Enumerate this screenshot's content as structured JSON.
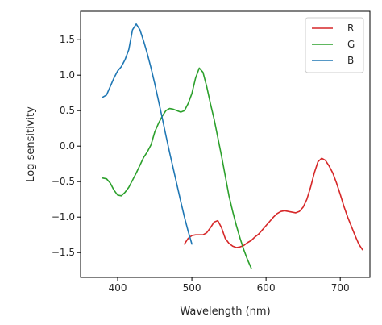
{
  "chart_data": {
    "type": "line",
    "xlabel": "Wavelength (nm)",
    "ylabel": "Log sensitivity",
    "xlim": [
      350,
      740
    ],
    "ylim": [
      -1.85,
      1.9
    ],
    "xticks": [
      400,
      500,
      600,
      700
    ],
    "yticks": [
      -1.5,
      -1.0,
      -0.5,
      0.0,
      0.5,
      1.0,
      1.5
    ],
    "ytick_labels": [
      "−1.5",
      "−1.0",
      "−0.5",
      "0.0",
      "0.5",
      "1.0",
      "1.5"
    ],
    "grid": false,
    "legend_position": "top-right",
    "series": [
      {
        "name": "R",
        "color": "#d62728",
        "x": [
          490,
          495,
          500,
          505,
          510,
          515,
          520,
          525,
          530,
          535,
          540,
          545,
          550,
          555,
          560,
          565,
          570,
          575,
          580,
          585,
          590,
          595,
          600,
          605,
          610,
          615,
          620,
          625,
          630,
          635,
          640,
          645,
          650,
          655,
          660,
          665,
          670,
          675,
          680,
          685,
          690,
          695,
          700,
          705,
          710,
          715,
          720,
          725,
          730
        ],
        "y": [
          -1.38,
          -1.3,
          -1.26,
          -1.25,
          -1.25,
          -1.25,
          -1.22,
          -1.15,
          -1.07,
          -1.05,
          -1.15,
          -1.3,
          -1.37,
          -1.41,
          -1.43,
          -1.42,
          -1.4,
          -1.36,
          -1.33,
          -1.28,
          -1.24,
          -1.18,
          -1.12,
          -1.06,
          -1.0,
          -0.95,
          -0.92,
          -0.91,
          -0.92,
          -0.93,
          -0.94,
          -0.92,
          -0.86,
          -0.75,
          -0.58,
          -0.38,
          -0.22,
          -0.17,
          -0.2,
          -0.28,
          -0.38,
          -0.52,
          -0.68,
          -0.85,
          -1.0,
          -1.13,
          -1.26,
          -1.38,
          -1.46
        ]
      },
      {
        "name": "G",
        "color": "#2ca02c",
        "x": [
          380,
          385,
          390,
          395,
          400,
          405,
          410,
          415,
          420,
          425,
          430,
          435,
          440,
          445,
          450,
          455,
          460,
          465,
          470,
          475,
          480,
          485,
          490,
          495,
          500,
          505,
          510,
          515,
          520,
          525,
          530,
          535,
          540,
          545,
          550,
          555,
          560,
          565,
          570,
          575,
          580
        ],
        "y": [
          -0.45,
          -0.46,
          -0.52,
          -0.62,
          -0.69,
          -0.7,
          -0.65,
          -0.58,
          -0.48,
          -0.38,
          -0.27,
          -0.16,
          -0.08,
          0.02,
          0.2,
          0.32,
          0.42,
          0.5,
          0.53,
          0.52,
          0.5,
          0.48,
          0.5,
          0.6,
          0.74,
          0.96,
          1.1,
          1.04,
          0.84,
          0.6,
          0.38,
          0.12,
          -0.14,
          -0.42,
          -0.7,
          -0.92,
          -1.12,
          -1.3,
          -1.46,
          -1.6,
          -1.72
        ]
      },
      {
        "name": "B",
        "color": "#1f77b4",
        "x": [
          380,
          385,
          390,
          395,
          400,
          405,
          410,
          415,
          420,
          425,
          430,
          435,
          440,
          445,
          450,
          455,
          460,
          465,
          470,
          475,
          480,
          485,
          490,
          495,
          500
        ],
        "y": [
          0.69,
          0.72,
          0.84,
          0.96,
          1.06,
          1.12,
          1.22,
          1.36,
          1.64,
          1.72,
          1.64,
          1.48,
          1.3,
          1.1,
          0.88,
          0.64,
          0.4,
          0.15,
          -0.09,
          -0.32,
          -0.55,
          -0.78,
          -1.0,
          -1.2,
          -1.38
        ]
      }
    ]
  }
}
